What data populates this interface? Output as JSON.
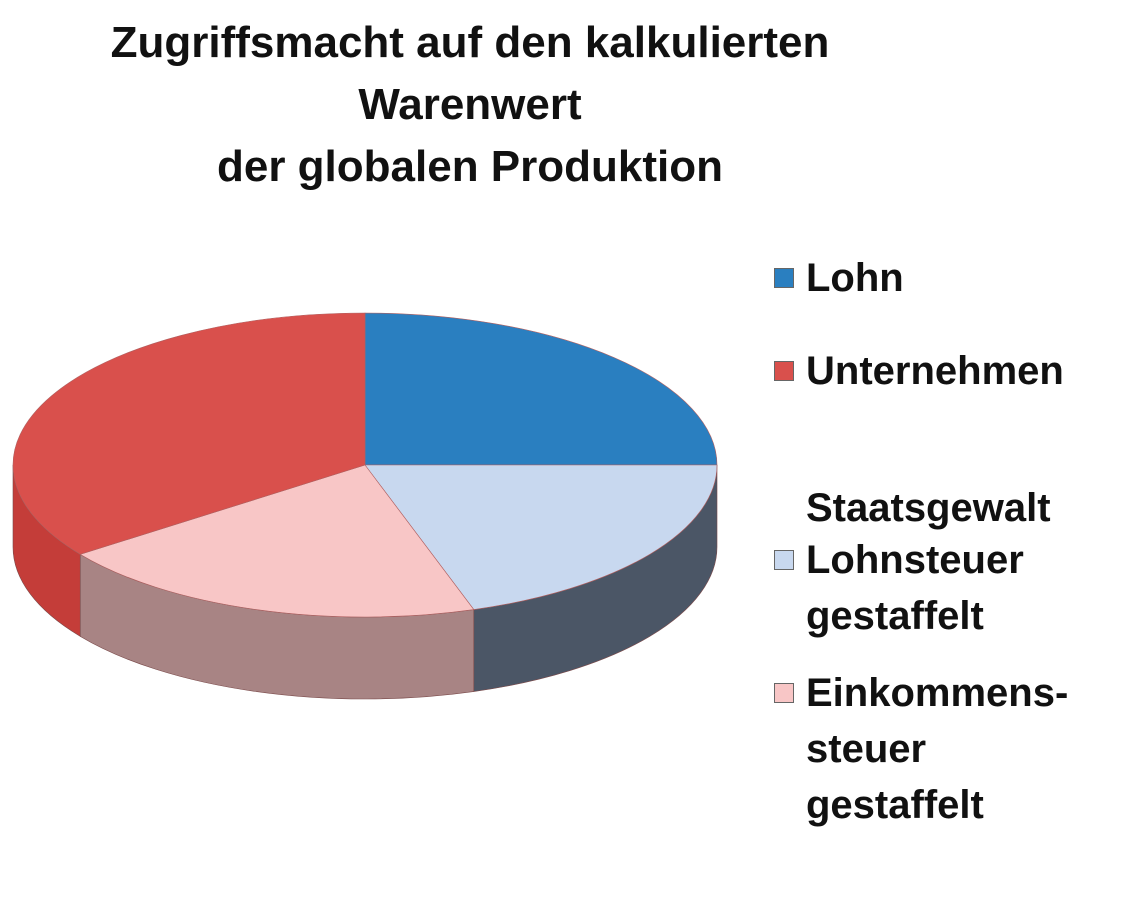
{
  "chart_data": {
    "type": "pie3d",
    "title": "Zugriffsmacht auf den kalkulierten\nWarenwert\nder globalen Produktion",
    "legend_group_title": "Staatsgewalt",
    "categories": [
      "Lohn",
      "Lohnsteuer\ngestaffelt",
      "Einkommens-\nsteuer\ngestaffelt",
      "Unternehmen"
    ],
    "values": [
      25,
      20,
      20,
      35
    ],
    "colors": [
      "#2a7fc0",
      "#c8d8ef",
      "#f8c6c6",
      "#d9504c"
    ],
    "side_colors": [
      "#1f5f90",
      "#4b5666",
      "#a88484",
      "#c43d39"
    ],
    "legend": "right"
  }
}
